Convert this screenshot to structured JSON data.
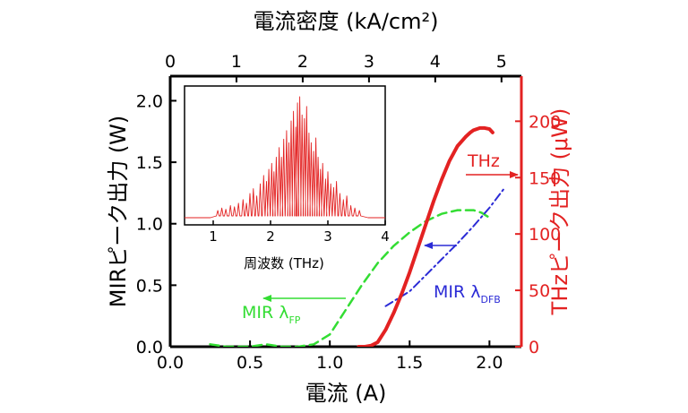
{
  "chart_data": {
    "type": "line",
    "title": "",
    "xlabel": "電流 (A)",
    "xlim": [
      0.0,
      2.2
    ],
    "xticks": [
      "0.0",
      "0.5",
      "1.0",
      "1.5",
      "2.0"
    ],
    "xtick_values": [
      0.0,
      0.5,
      1.0,
      1.5,
      2.0
    ],
    "x2label": "電流密度 (kA/cm²)",
    "x2lim": [
      0,
      5.3
    ],
    "x2ticks": [
      "0",
      "1",
      "2",
      "3",
      "4",
      "5"
    ],
    "x2tick_values": [
      0,
      1,
      2,
      3,
      4,
      5
    ],
    "ylabel": "MIRピーク出力 (W)",
    "ylim": [
      0.0,
      2.2
    ],
    "yticks": [
      "0.0",
      "0.5",
      "1.0",
      "1.5",
      "2.0"
    ],
    "ytick_values": [
      0.0,
      0.5,
      1.0,
      1.5,
      2.0
    ],
    "y2label": "THzピーク出力 (μW)",
    "y2lim": [
      0,
      240
    ],
    "y2ticks": [
      "0",
      "50",
      "100",
      "150",
      "200"
    ],
    "y2tick_values": [
      0,
      50,
      100,
      150,
      200
    ],
    "series": [
      {
        "name": "MIR λFP",
        "axis": "left",
        "color": "#33dd33",
        "style": "dashed",
        "x": [
          0.25,
          0.35,
          0.5,
          0.6,
          0.7,
          0.8,
          0.9,
          1.0,
          1.1,
          1.2,
          1.3,
          1.4,
          1.5,
          1.6,
          1.7,
          1.8,
          1.9,
          1.95,
          2.0
        ],
        "y": [
          0.02,
          0.0,
          0.0,
          0.02,
          0.0,
          0.0,
          0.02,
          0.1,
          0.3,
          0.5,
          0.68,
          0.82,
          0.93,
          1.02,
          1.08,
          1.11,
          1.11,
          1.09,
          1.05
        ]
      },
      {
        "name": "MIR λDFB",
        "axis": "left",
        "color": "#2b2bd6",
        "style": "dashdot",
        "x": [
          1.35,
          1.5,
          1.6,
          1.7,
          1.8,
          1.9,
          2.0,
          2.1
        ],
        "y": [
          0.33,
          0.45,
          0.58,
          0.71,
          0.84,
          0.98,
          1.13,
          1.3
        ]
      },
      {
        "name": "THz",
        "axis": "right",
        "color": "#e32222",
        "style": "solid",
        "x": [
          1.18,
          1.22,
          1.26,
          1.3,
          1.35,
          1.4,
          1.45,
          1.5,
          1.55,
          1.6,
          1.65,
          1.7,
          1.75,
          1.8,
          1.85,
          1.88,
          1.9,
          1.92,
          1.94,
          1.97,
          2.0,
          2.02
        ],
        "y": [
          0,
          0,
          1,
          4,
          15,
          30,
          47,
          66,
          87,
          108,
          129,
          148,
          165,
          178,
          186,
          190,
          192,
          193,
          194,
          194,
          193,
          190
        ]
      }
    ],
    "annotations": [
      {
        "text": "THz",
        "color": "#e32222"
      },
      {
        "text": "MIR λ",
        "sub": "DFB",
        "color": "#2b2bd6"
      },
      {
        "text": "MIR λ",
        "sub": "FP",
        "color": "#33dd33"
      }
    ],
    "inset": {
      "type": "line",
      "xlabel": "周波数 (THz)",
      "xlim": [
        0.5,
        4.0
      ],
      "xticks": [
        "1",
        "2",
        "3",
        "4"
      ],
      "xtick_values": [
        1,
        2,
        3,
        4
      ],
      "color": "#e32222",
      "peaks": [
        [
          1.08,
          0.06
        ],
        [
          1.15,
          0.08
        ],
        [
          1.22,
          0.07
        ],
        [
          1.3,
          0.1
        ],
        [
          1.37,
          0.09
        ],
        [
          1.44,
          0.12
        ],
        [
          1.52,
          0.15
        ],
        [
          1.58,
          0.12
        ],
        [
          1.64,
          0.2
        ],
        [
          1.7,
          0.24
        ],
        [
          1.76,
          0.18
        ],
        [
          1.82,
          0.28
        ],
        [
          1.88,
          0.35
        ],
        [
          1.93,
          0.3
        ],
        [
          1.97,
          0.4
        ],
        [
          2.02,
          0.45
        ],
        [
          2.06,
          0.38
        ],
        [
          2.1,
          0.5
        ],
        [
          2.15,
          0.58
        ],
        [
          2.19,
          0.5
        ],
        [
          2.23,
          0.65
        ],
        [
          2.28,
          0.72
        ],
        [
          2.32,
          0.62
        ],
        [
          2.36,
          0.8
        ],
        [
          2.4,
          0.88
        ],
        [
          2.44,
          0.75
        ],
        [
          2.47,
          0.95
        ],
        [
          2.51,
          1.0
        ],
        [
          2.55,
          0.85
        ],
        [
          2.59,
          0.82
        ],
        [
          2.63,
          0.92
        ],
        [
          2.67,
          0.7
        ],
        [
          2.71,
          0.62
        ],
        [
          2.75,
          0.55
        ],
        [
          2.79,
          0.66
        ],
        [
          2.83,
          0.5
        ],
        [
          2.87,
          0.4
        ],
        [
          2.91,
          0.45
        ],
        [
          2.96,
          0.32
        ],
        [
          3.0,
          0.38
        ],
        [
          3.05,
          0.28
        ],
        [
          3.1,
          0.25
        ],
        [
          3.15,
          0.3
        ],
        [
          3.21,
          0.2
        ],
        [
          3.27,
          0.15
        ],
        [
          3.33,
          0.18
        ],
        [
          3.4,
          0.1
        ],
        [
          3.47,
          0.08
        ],
        [
          3.55,
          0.06
        ]
      ]
    }
  }
}
